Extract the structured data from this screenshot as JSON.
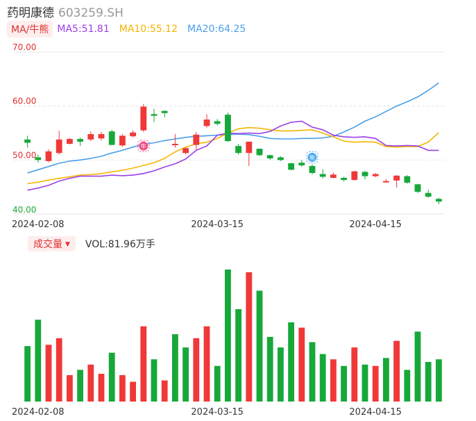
{
  "header": {
    "name": "药明康德",
    "code": "603259.SH"
  },
  "ma_legend": {
    "button": "MA/牛熊",
    "items": [
      {
        "label": "MA5:51.81",
        "color": "#9b3fe6"
      },
      {
        "label": "MA10:55.12",
        "color": "#f6b500"
      },
      {
        "label": "MA20:64.25",
        "color": "#4a9ee8"
      }
    ]
  },
  "volume_header": {
    "button": "成交量",
    "caret": "▼",
    "text": "VOL:81.96万手"
  },
  "colors": {
    "up": "#f03838",
    "down": "#17a83a",
    "ma5": "#9b3fe6",
    "ma10": "#f6b500",
    "ma20": "#4a9ee8",
    "bull_icon": "#f0508a",
    "bear_icon": "#4aa8f0"
  },
  "markers": {
    "bull": "牛",
    "bear": "熊"
  },
  "chart_data": [
    {
      "type": "candlestick",
      "title": "",
      "y_tick_labels": [
        "70.00",
        "60.00",
        "50.00",
        "40.00"
      ],
      "y_ticks": [
        70,
        60,
        50,
        40
      ],
      "ylim": [
        40,
        70
      ],
      "x_tick_labels": [
        "2024-02-08",
        "2024-03-15",
        "2024-04-15"
      ],
      "x_tick_index": [
        1,
        18,
        33
      ],
      "candles": [
        {
          "o": 53.8,
          "c": 53.2,
          "h": 54.5,
          "l": 52.3
        },
        {
          "o": 50.5,
          "c": 50.0,
          "h": 51.0,
          "l": 49.5
        },
        {
          "o": 49.8,
          "c": 51.6,
          "h": 52.0,
          "l": 49.6
        },
        {
          "o": 51.3,
          "c": 53.8,
          "h": 55.4,
          "l": 51.0
        },
        {
          "o": 53.0,
          "c": 53.9,
          "h": 54.1,
          "l": 52.9
        },
        {
          "o": 53.9,
          "c": 53.4,
          "h": 54.2,
          "l": 52.6
        },
        {
          "o": 53.8,
          "c": 54.8,
          "h": 55.3,
          "l": 53.5
        },
        {
          "o": 54.0,
          "c": 54.8,
          "h": 55.2,
          "l": 53.6
        },
        {
          "o": 55.3,
          "c": 52.8,
          "h": 55.6,
          "l": 52.7
        },
        {
          "o": 52.7,
          "c": 54.5,
          "h": 54.8,
          "l": 52.5
        },
        {
          "o": 54.4,
          "c": 55.1,
          "h": 55.5,
          "l": 54.2
        },
        {
          "o": 55.5,
          "c": 59.9,
          "h": 60.4,
          "l": 55.2
        },
        {
          "o": 58.5,
          "c": 58.2,
          "h": 59.5,
          "l": 57.0
        },
        {
          "o": 59.1,
          "c": 58.7,
          "h": 59.2,
          "l": 57.9
        },
        {
          "o": 53.0,
          "c": 53.0,
          "h": 54.8,
          "l": 52.3
        },
        {
          "o": 51.3,
          "c": 52.2,
          "h": 52.3,
          "l": 51.0
        },
        {
          "o": 52.8,
          "c": 54.7,
          "h": 55.2,
          "l": 51.9
        },
        {
          "o": 56.3,
          "c": 57.5,
          "h": 58.5,
          "l": 56.0
        },
        {
          "o": 57.2,
          "c": 56.7,
          "h": 57.6,
          "l": 56.4
        },
        {
          "o": 58.4,
          "c": 53.5,
          "h": 58.8,
          "l": 53.4
        },
        {
          "o": 52.6,
          "c": 51.3,
          "h": 53.0,
          "l": 51.0
        },
        {
          "o": 51.3,
          "c": 53.4,
          "h": 53.4,
          "l": 48.9
        },
        {
          "o": 52.1,
          "c": 50.9,
          "h": 52.1,
          "l": 50.7
        },
        {
          "o": 50.9,
          "c": 50.3,
          "h": 51.0,
          "l": 50.0
        },
        {
          "o": 50.5,
          "c": 50.0,
          "h": 50.7,
          "l": 49.8
        },
        {
          "o": 49.4,
          "c": 48.2,
          "h": 49.5,
          "l": 48.1
        },
        {
          "o": 49.5,
          "c": 49.0,
          "h": 50.0,
          "l": 48.8
        },
        {
          "o": 48.9,
          "c": 47.6,
          "h": 49.2,
          "l": 47.3
        },
        {
          "o": 47.4,
          "c": 46.9,
          "h": 48.3,
          "l": 46.6
        },
        {
          "o": 46.7,
          "c": 47.3,
          "h": 47.7,
          "l": 46.6
        },
        {
          "o": 46.7,
          "c": 46.3,
          "h": 46.9,
          "l": 46.0
        },
        {
          "o": 46.3,
          "c": 47.9,
          "h": 48.0,
          "l": 46.2
        },
        {
          "o": 47.8,
          "c": 47.0,
          "h": 48.0,
          "l": 46.4
        },
        {
          "o": 47.0,
          "c": 47.4,
          "h": 47.6,
          "l": 46.8
        },
        {
          "o": 46.0,
          "c": 46.1,
          "h": 46.5,
          "l": 45.8
        },
        {
          "o": 46.2,
          "c": 47.1,
          "h": 47.2,
          "l": 44.9
        },
        {
          "o": 47.0,
          "c": 45.8,
          "h": 47.2,
          "l": 45.6
        },
        {
          "o": 45.5,
          "c": 44.1,
          "h": 45.6,
          "l": 43.9
        },
        {
          "o": 43.9,
          "c": 43.2,
          "h": 44.5,
          "l": 43.0
        },
        {
          "o": 42.8,
          "c": 42.3,
          "h": 43.0,
          "l": 41.8
        }
      ],
      "ma5": [
        44.4,
        44.8,
        45.3,
        46.1,
        46.6,
        47.0,
        47.0,
        47.0,
        47.2,
        47.1,
        47.2,
        47.5,
        48.0,
        48.7,
        49.3,
        50.2,
        51.8,
        52.6,
        54.6,
        55.0,
        54.9,
        55.0,
        54.9,
        55.3,
        56.3,
        57.0,
        57.2,
        56.1,
        55.6,
        54.6,
        54.3,
        54.2,
        54.3,
        54.0,
        52.7,
        52.6,
        52.7,
        52.6,
        51.8,
        51.8
      ],
      "ma10": [
        45.6,
        45.9,
        46.3,
        46.6,
        46.9,
        47.2,
        47.3,
        47.5,
        47.8,
        48.1,
        48.5,
        49.0,
        49.5,
        50.3,
        51.5,
        52.4,
        53.0,
        53.3,
        54.0,
        55.0,
        55.8,
        56.0,
        55.9,
        55.6,
        55.4,
        55.4,
        55.5,
        55.6,
        55.0,
        54.3,
        53.5,
        53.3,
        53.4,
        53.3,
        52.5,
        52.4,
        52.5,
        52.5,
        53.3,
        55.1
      ],
      "ma20": [
        47.6,
        48.2,
        48.8,
        49.4,
        49.8,
        50.0,
        50.3,
        50.7,
        51.3,
        51.8,
        52.4,
        52.9,
        53.2,
        53.6,
        53.9,
        54.2,
        54.4,
        54.5,
        54.6,
        54.7,
        54.8,
        54.7,
        54.4,
        54.0,
        53.9,
        53.9,
        54.0,
        54.0,
        54.1,
        54.4,
        55.2,
        56.1,
        57.2,
        58.0,
        59.0,
        60.0,
        60.8,
        61.7,
        62.9,
        64.3
      ]
    },
    {
      "type": "bar",
      "title": "",
      "ylim": [
        0,
        100
      ],
      "x_tick_labels": [
        "2024-02-08",
        "2024-03-15",
        "2024-04-15"
      ],
      "values": [
        42,
        62,
        43,
        48,
        20,
        24,
        28,
        21,
        37,
        20,
        15,
        57,
        32,
        16,
        51,
        41,
        48,
        57,
        27,
        100,
        70,
        98,
        84,
        49,
        41,
        60,
        56,
        45,
        36,
        32,
        27,
        41,
        28,
        27,
        33,
        46,
        24,
        53,
        30,
        32
      ],
      "up": [
        false,
        false,
        true,
        true,
        true,
        false,
        true,
        true,
        false,
        true,
        true,
        true,
        false,
        true,
        false,
        false,
        true,
        true,
        false,
        false,
        false,
        true,
        false,
        false,
        false,
        false,
        true,
        false,
        false,
        true,
        false,
        true,
        false,
        true,
        false,
        true,
        false,
        false,
        false,
        false
      ]
    }
  ]
}
